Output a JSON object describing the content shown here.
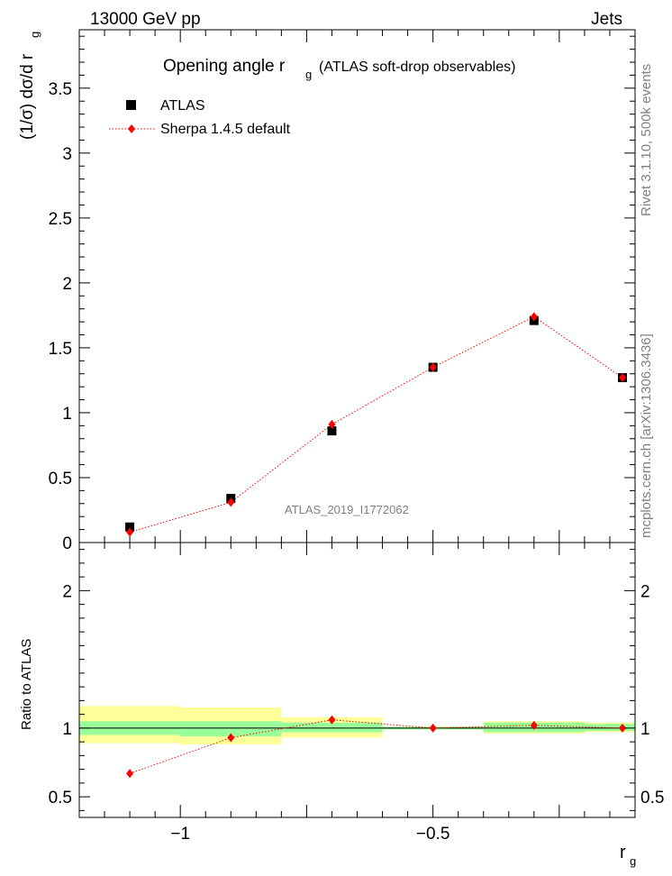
{
  "header": {
    "left": "13000 GeV pp",
    "right": "Jets"
  },
  "side_labels": {
    "rivet": "Rivet 3.1.10,  500k events",
    "mcplots": "mcplots.cern.ch [arXiv:1306.3436]"
  },
  "watermark": "ATLAS_2019_I1772062",
  "colors": {
    "data": "#000000",
    "mc": "#ff0000",
    "band_inner": "#99ff99",
    "band_outer": "#ffff99"
  },
  "chart_data": [
    {
      "type": "scatter",
      "panel": "main",
      "title_main": "Opening angle r",
      "title_sub": "g",
      "title_rest": "(ATLAS soft-drop observables)",
      "ylabel": "(1/σ) dσ/d r",
      "ylabel_sub": "g",
      "xlim": [
        -1.2,
        -0.1
      ],
      "ylim": [
        0,
        3.95
      ],
      "yticks": [
        0,
        0.5,
        1,
        1.5,
        2,
        2.5,
        3,
        3.5
      ],
      "ytick_labels": [
        "0",
        "0.5",
        "1",
        "1.5",
        "2",
        "2.5",
        "3",
        "3.5"
      ],
      "legend": [
        {
          "name": "ATLAS",
          "marker": "square"
        },
        {
          "name": "Sherpa 1.4.5 default",
          "marker": "diamond"
        }
      ],
      "series": [
        {
          "name": "ATLAS",
          "x": [
            -1.1,
            -0.9,
            -0.7,
            -0.5,
            -0.3,
            -0.125
          ],
          "y": [
            0.12,
            0.34,
            0.86,
            1.35,
            1.71,
            1.27
          ]
        },
        {
          "name": "Sherpa 1.4.5 default",
          "x": [
            -1.1,
            -0.9,
            -0.7,
            -0.5,
            -0.3,
            -0.125
          ],
          "y": [
            0.08,
            0.31,
            0.91,
            1.35,
            1.74,
            1.27
          ]
        }
      ]
    },
    {
      "type": "scatter",
      "panel": "ratio",
      "ylabel": "Ratio to ATLAS",
      "xlabel": "r",
      "xlabel_sub": "g",
      "xlim": [
        -1.2,
        -0.1
      ],
      "ylim": [
        0.35,
        2.35
      ],
      "yticks": [
        0.5,
        1,
        2
      ],
      "ytick_labels": [
        "0.5",
        "1",
        "2"
      ],
      "xticks": [
        -1,
        -0.5
      ],
      "xtick_labels": [
        "−1",
        "−0.5"
      ],
      "bins": [
        {
          "x0": -1.2,
          "x1": -1.0,
          "inner": [
            0.95,
            1.05
          ],
          "outer": [
            0.89,
            1.16
          ]
        },
        {
          "x0": -1.0,
          "x1": -0.8,
          "inner": [
            0.94,
            1.05
          ],
          "outer": [
            0.88,
            1.15
          ]
        },
        {
          "x0": -0.8,
          "x1": -0.6,
          "inner": [
            0.97,
            1.04
          ],
          "outer": [
            0.93,
            1.08
          ]
        },
        {
          "x0": -0.6,
          "x1": -0.4,
          "inner": [
            0.99,
            1.01
          ],
          "outer": [
            0.99,
            1.01
          ]
        },
        {
          "x0": -0.4,
          "x1": -0.2,
          "inner": [
            0.97,
            1.04
          ],
          "outer": [
            0.96,
            1.05
          ]
        },
        {
          "x0": -0.2,
          "x1": -0.05,
          "inner": [
            0.98,
            1.03
          ],
          "outer": [
            0.97,
            1.04
          ]
        }
      ],
      "series": [
        {
          "name": "Sherpa 1.4.5 default",
          "x": [
            -1.1,
            -0.9,
            -0.7,
            -0.5,
            -0.3,
            -0.125
          ],
          "y": [
            0.67,
            0.93,
            1.06,
            1.0,
            1.02,
            1.0
          ],
          "err": [
            0.03,
            0.01,
            0.01,
            0.0,
            0.01,
            0.01
          ]
        }
      ]
    }
  ]
}
